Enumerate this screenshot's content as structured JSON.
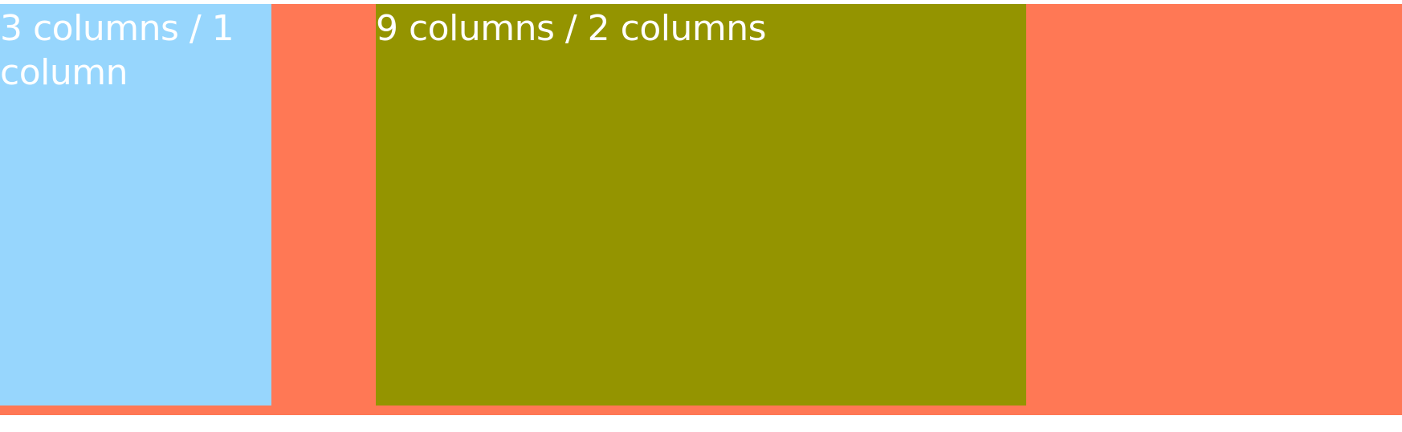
{
  "colors": {
    "container_bg": "#ff7855",
    "cell_a_bg": "#97d6fd",
    "cell_b_bg": "#949400",
    "text": "#ffffff"
  },
  "cells": [
    {
      "label": "3 columns / 1 column"
    },
    {
      "label": "9 columns / 2 columns"
    }
  ]
}
